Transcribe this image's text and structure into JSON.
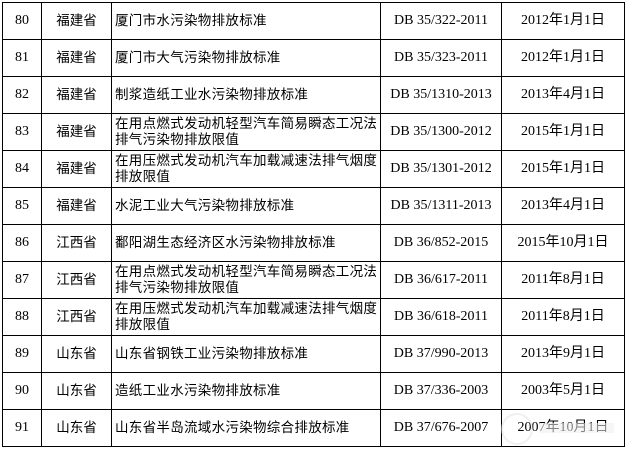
{
  "rows": [
    {
      "no": "80",
      "province": "福建省",
      "name": "厦门市水污染物排放标准",
      "code": "DB 35/322-2011",
      "date": "2012年1月1日"
    },
    {
      "no": "81",
      "province": "福建省",
      "name": "厦门市大气污染物排放标准",
      "code": "DB 35/323-2011",
      "date": "2012年1月1日"
    },
    {
      "no": "82",
      "province": "福建省",
      "name": "制浆造纸工业水污染物排放标准",
      "code": "DB 35/1310-2013",
      "date": "2013年4月1日"
    },
    {
      "no": "83",
      "province": "福建省",
      "name": "在用点燃式发动机轻型汽车简易瞬态工况法排气污染物排放限值",
      "code": "DB 35/1300-2012",
      "date": "2015年1月1日"
    },
    {
      "no": "84",
      "province": "福建省",
      "name": "在用压燃式发动机汽车加载减速法排气烟度排放限值",
      "code": "DB 35/1301-2012",
      "date": "2015年1月1日"
    },
    {
      "no": "85",
      "province": "福建省",
      "name": "水泥工业大气污染物排放标准",
      "code": "DB 35/1311-2013",
      "date": "2013年4月1日"
    },
    {
      "no": "86",
      "province": "江西省",
      "name": "鄱阳湖生态经济区水污染物排放标准",
      "code": "DB 36/852-2015",
      "date": "2015年10月1日"
    },
    {
      "no": "87",
      "province": "江西省",
      "name": "在用点燃式发动机轻型汽车简易瞬态工况法排气污染物排放限值",
      "code": "DB 36/617-2011",
      "date": "2011年8月1日"
    },
    {
      "no": "88",
      "province": "江西省",
      "name": "在用压燃式发动机汽车加载减速法排气烟度排放限值",
      "code": "DB 36/618-2011",
      "date": "2011年8月1日"
    },
    {
      "no": "89",
      "province": "山东省",
      "name": "山东省钢铁工业污染物排放标准",
      "code": "DB 37/990-2013",
      "date": "2013年9月1日"
    },
    {
      "no": "90",
      "province": "山东省",
      "name": "造纸工业水污染物排放标准",
      "code": "DB 37/336-2003",
      "date": "2003年5月1日"
    },
    {
      "no": "91",
      "province": "山东省",
      "name": "山东省半岛流域水污染物综合排放标准",
      "code": "DB 37/676-2007",
      "date": "2007年10月1日"
    }
  ]
}
